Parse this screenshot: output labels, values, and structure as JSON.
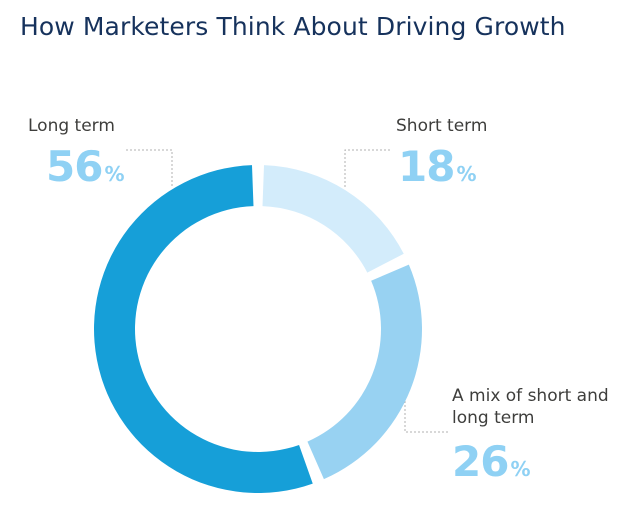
{
  "chart_data": {
    "type": "pie",
    "title": "How Marketers Think About Driving Growth",
    "series": [
      {
        "name": "Long term",
        "value": 56,
        "color": "#169fd8"
      },
      {
        "name": "Short term",
        "value": 18,
        "color": "#d3ecfb"
      },
      {
        "name": "A mix of short and long term",
        "value": 26,
        "color": "#98d2f2"
      }
    ],
    "percent_sign": "%",
    "percent_color": "#8fd1f4"
  }
}
